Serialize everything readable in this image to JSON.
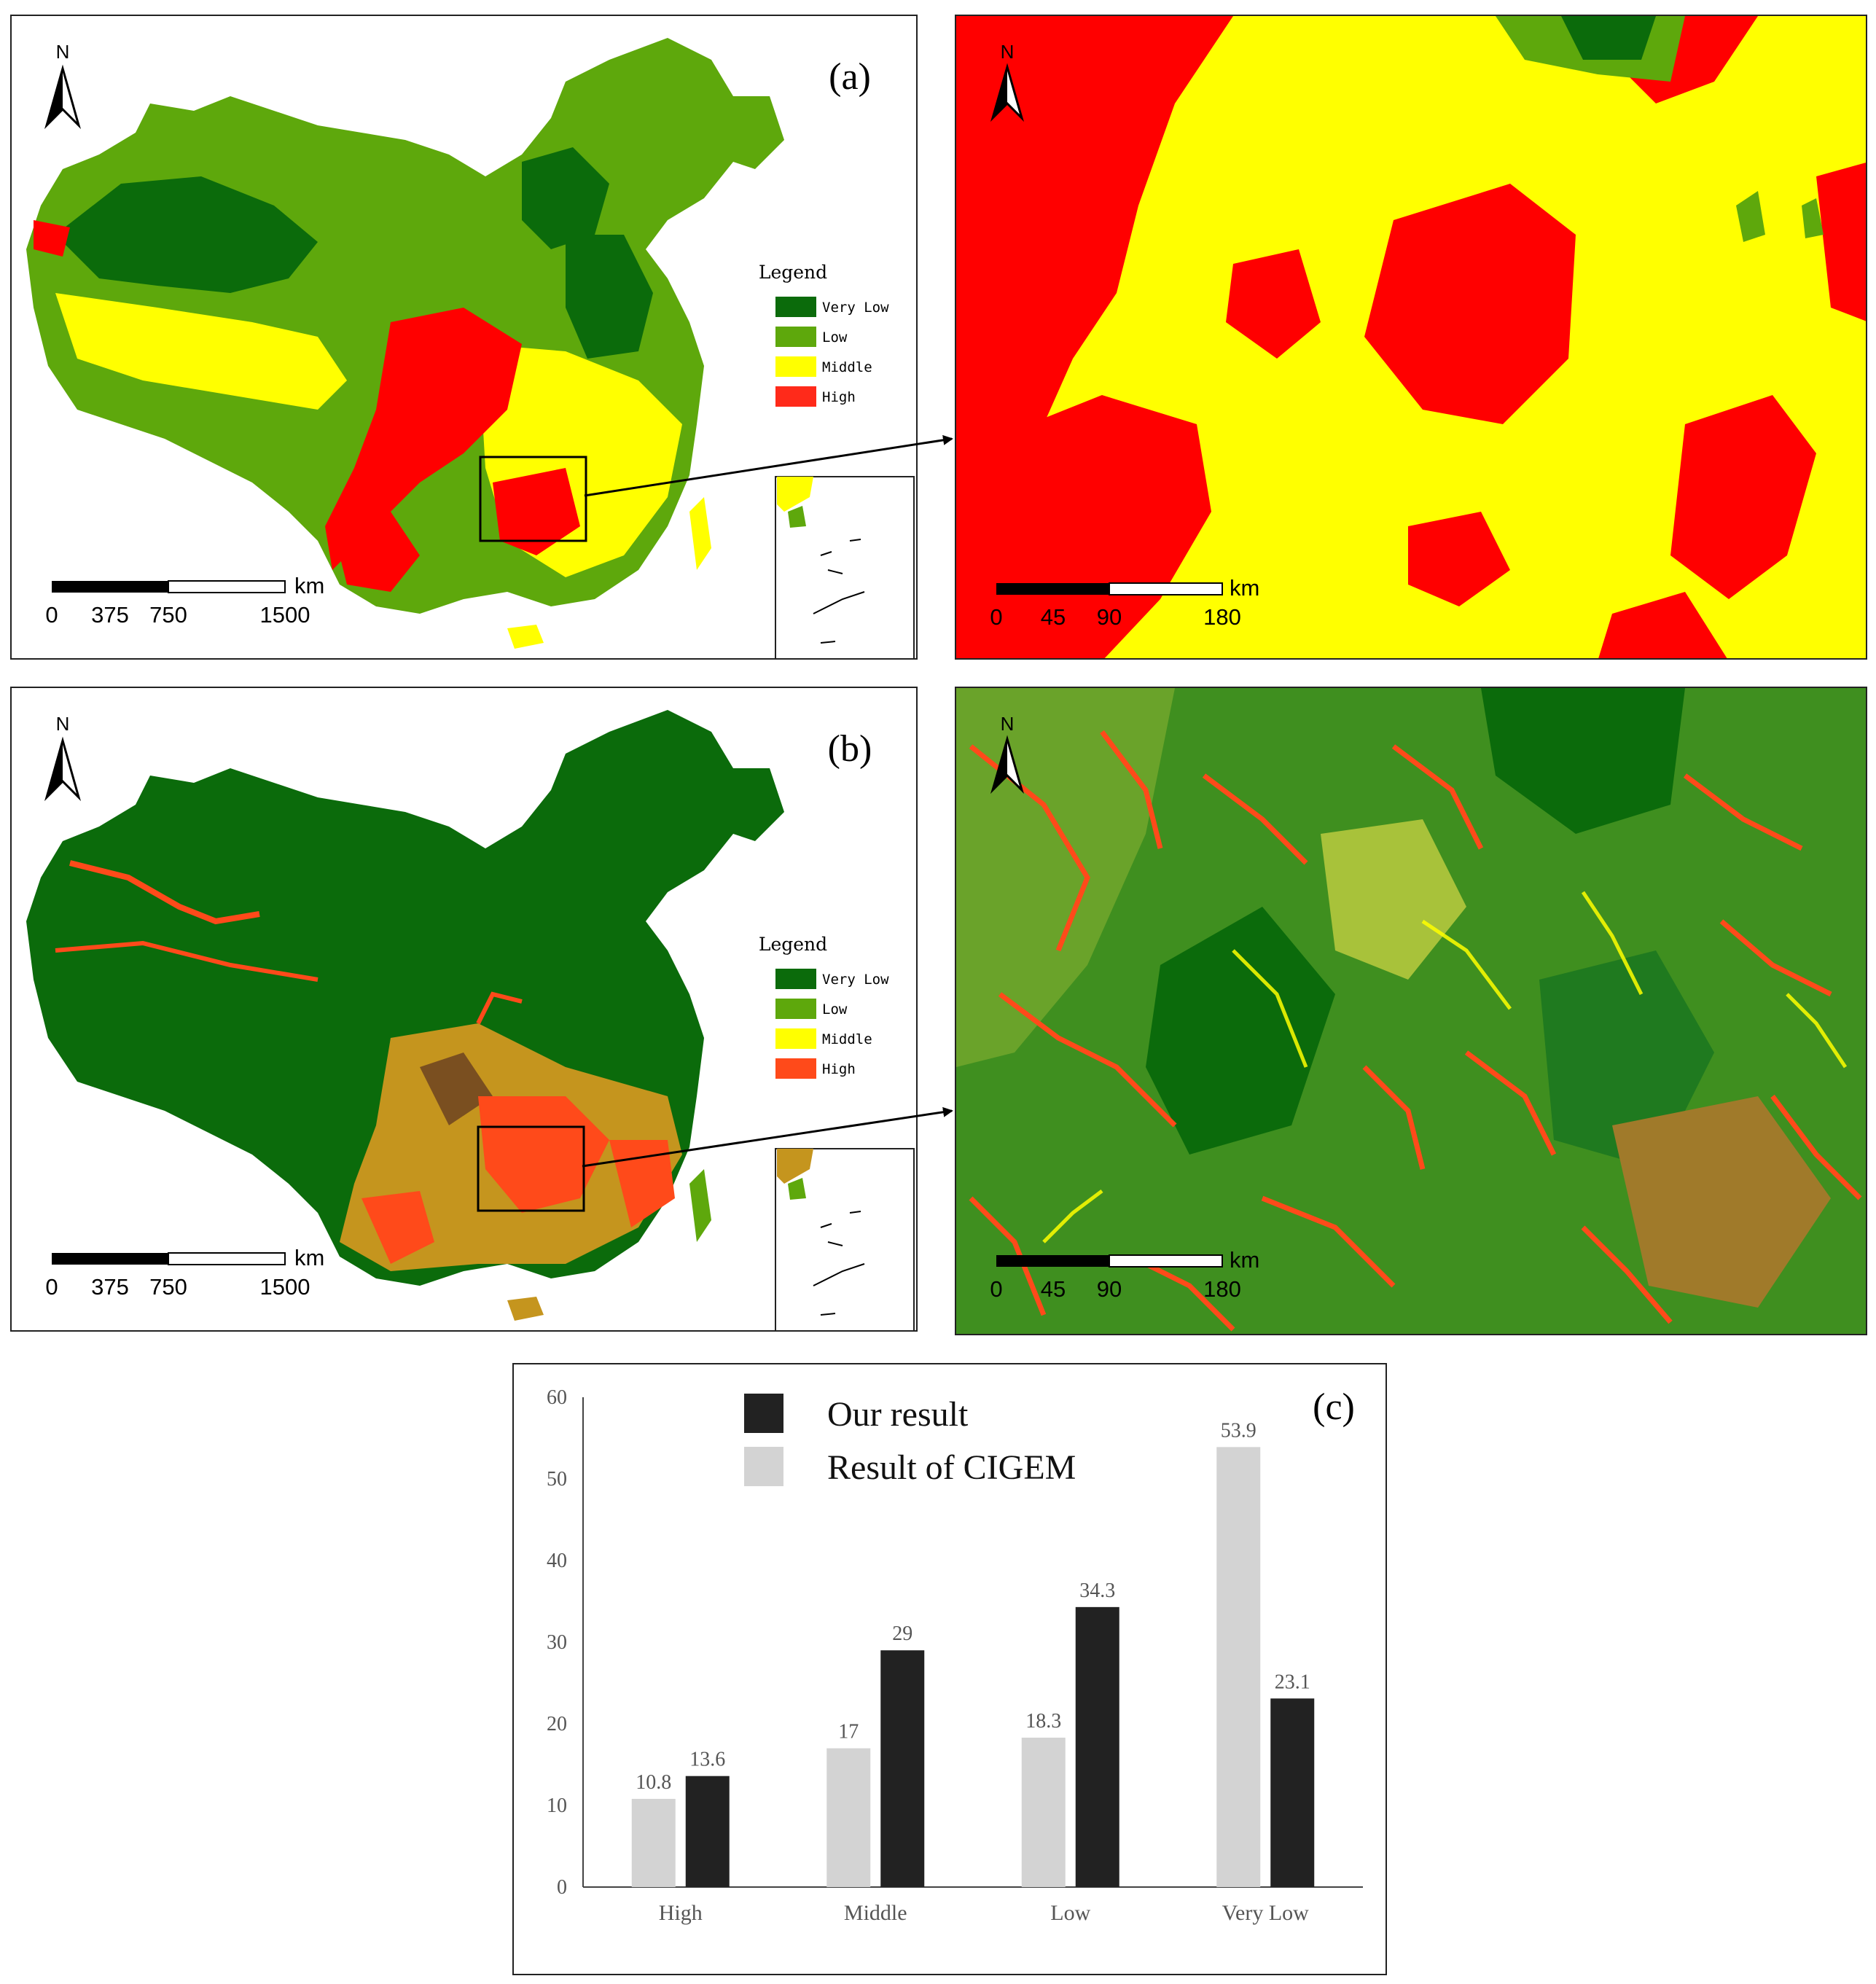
{
  "colors": {
    "very_low": "#0b6b0b",
    "low": "#5ea80c",
    "middle": "#ffff00",
    "high": "#ff0000",
    "high_b": "#ff4a1a",
    "ours": "#222222",
    "cigem": "#d3d3d3"
  },
  "north_label": "N",
  "panels": {
    "a": {
      "letter": "(a)"
    },
    "b": {
      "letter": "(b)"
    },
    "c": {
      "letter": "(c)"
    }
  },
  "legend": {
    "title": "Legend",
    "items": [
      "Very Low",
      "Low",
      "Middle",
      "High"
    ]
  },
  "scale_main": {
    "unit": "km",
    "ticks": [
      "0",
      "375",
      "750",
      "1500"
    ]
  },
  "scale_zoom": {
    "unit": "km",
    "ticks": [
      "0",
      "45",
      "90",
      "180"
    ]
  },
  "chart_data": {
    "type": "bar",
    "title": "",
    "categories": [
      "High",
      "Middle",
      "Low",
      "Very Low"
    ],
    "series": [
      {
        "name": "Result of CIGEM",
        "values": [
          10.8,
          17,
          18.3,
          53.9
        ]
      },
      {
        "name": "Our result",
        "values": [
          13.6,
          29,
          34.3,
          23.1
        ]
      }
    ],
    "value_labels": {
      "Result of CIGEM": [
        "10.8",
        "17",
        "18.3",
        "53.9"
      ],
      "Our result": [
        "13.6",
        "29",
        "34.3",
        "23.1"
      ]
    },
    "legend_order": [
      "Our result",
      "Result of CIGEM"
    ],
    "ylim": [
      0,
      60
    ],
    "yticks": [
      "0",
      "10",
      "20",
      "30",
      "40",
      "50",
      "60"
    ],
    "xlabel": "",
    "ylabel": "",
    "legend_position": "top-left"
  }
}
